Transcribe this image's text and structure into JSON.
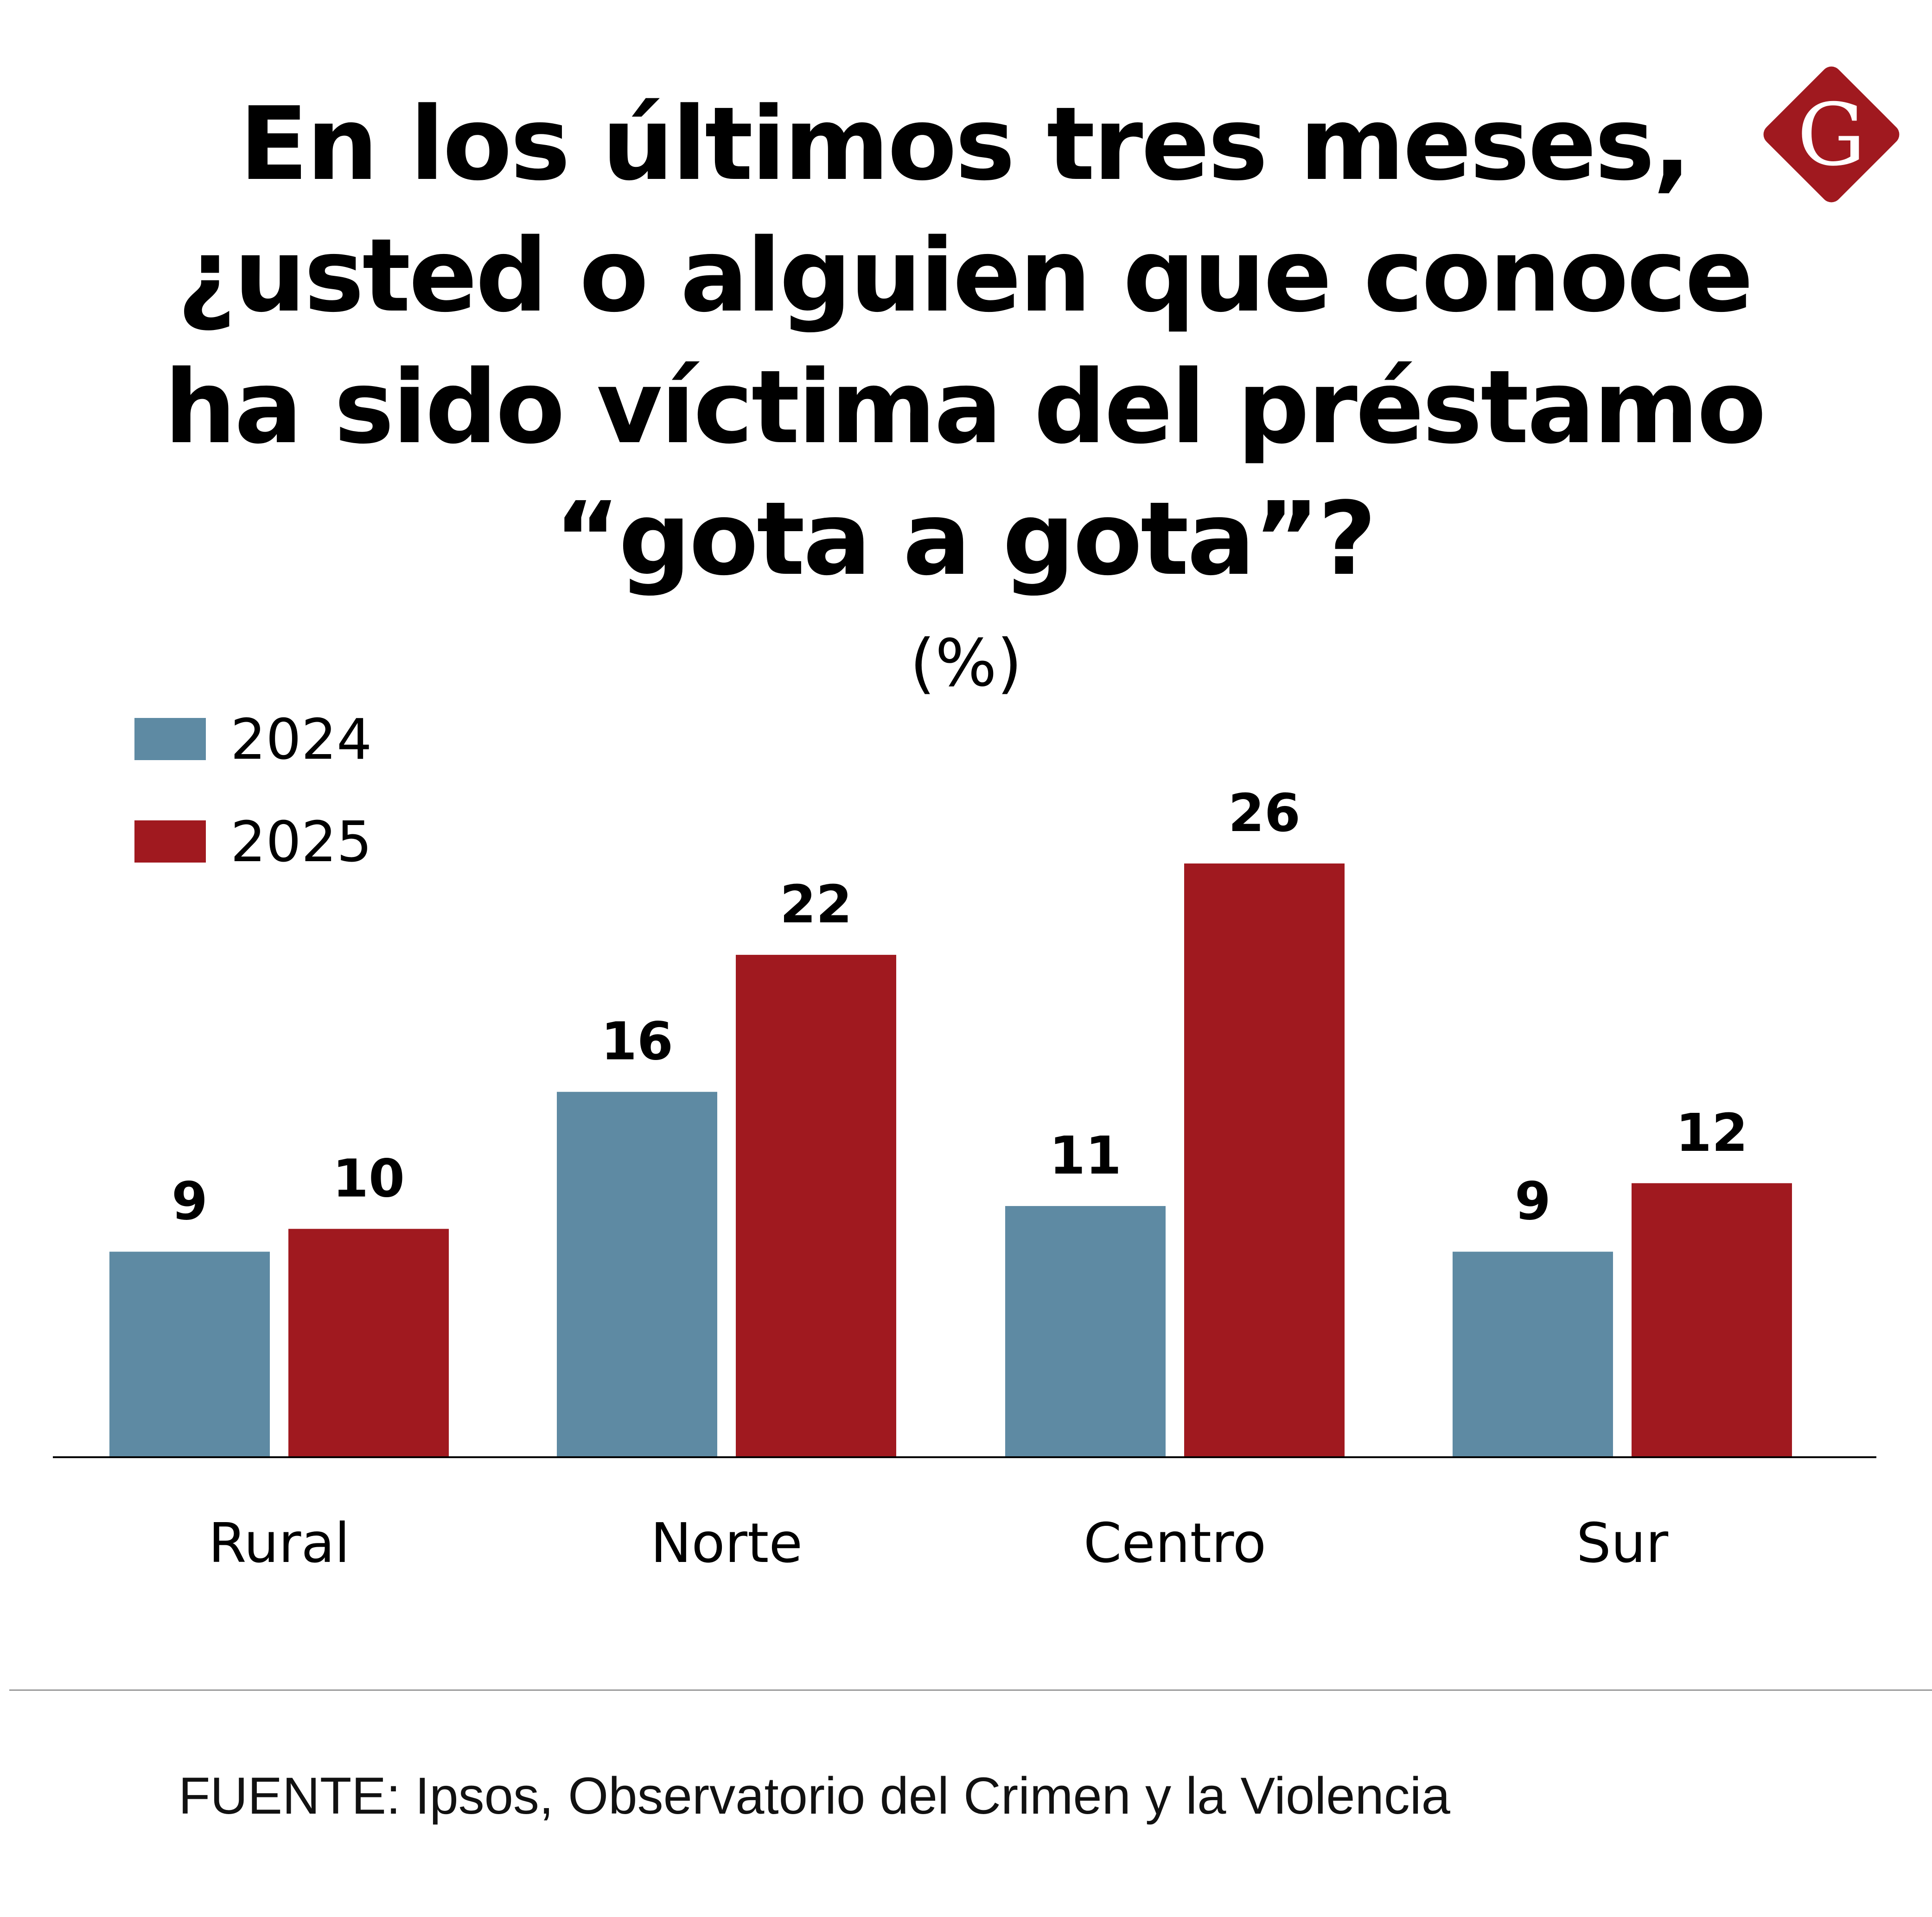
{
  "logo": {
    "letter": "G",
    "color": "#a0191f"
  },
  "chart_data": {
    "type": "bar",
    "title": "En los últimos tres meses, ¿usted o alguien que conoce ha sido víctima del préstamo “gota a gota”?",
    "subtitle": "(%)",
    "categories": [
      "Rural",
      "Norte",
      "Centro",
      "Sur"
    ],
    "series": [
      {
        "name": "2024",
        "values": [
          9,
          16,
          11,
          9
        ],
        "color": "#5e8aa3"
      },
      {
        "name": "2025",
        "values": [
          10,
          22,
          26,
          12
        ],
        "color": "#a0191f"
      }
    ],
    "ylim": [
      0,
      26
    ],
    "grid": false,
    "legend": "top-left",
    "source": "FUENTE:  Ipsos, Observatorio del Crimen y la Violencia"
  }
}
